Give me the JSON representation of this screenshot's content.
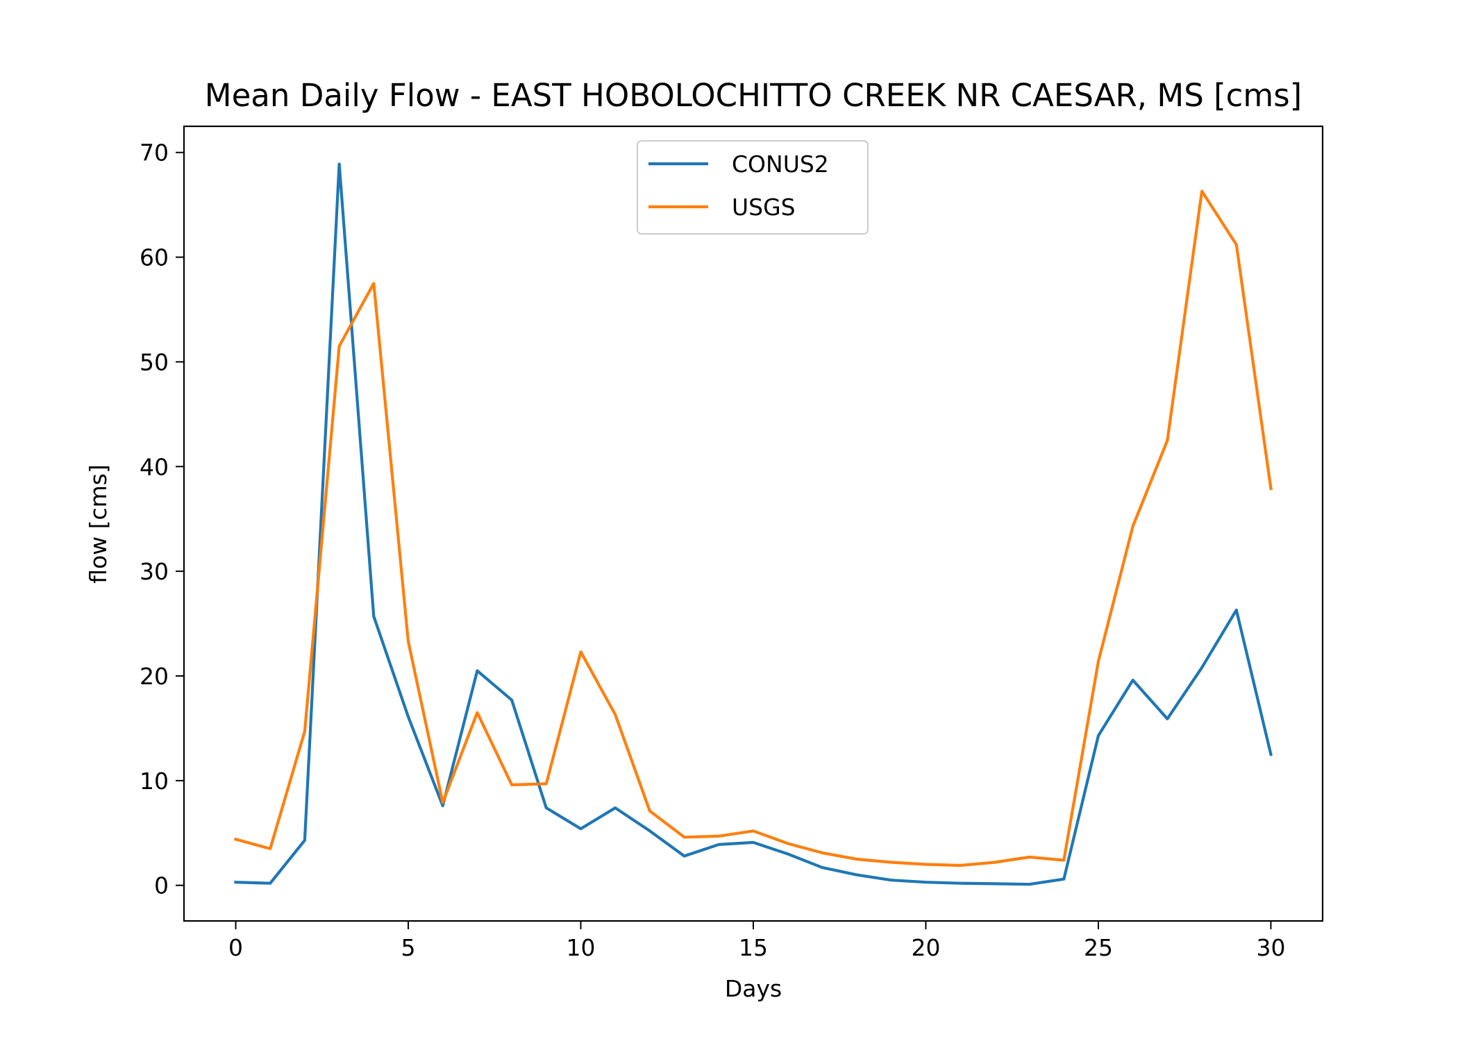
{
  "chart_data": {
    "type": "line",
    "title": "Mean Daily Flow - EAST HOBOLOCHITTO CREEK NR CAESAR, MS [cms]",
    "xlabel": "Days",
    "ylabel": "flow [cms]",
    "xlim": [
      -1.5,
      31.5
    ],
    "ylim": [
      -3.4,
      72.5
    ],
    "xticks": [
      0,
      5,
      10,
      15,
      20,
      25,
      30
    ],
    "yticks": [
      0,
      10,
      20,
      30,
      40,
      50,
      60,
      70
    ],
    "grid": false,
    "legend_position": "upper-center",
    "x": [
      0,
      1,
      2,
      3,
      4,
      5,
      6,
      7,
      8,
      9,
      10,
      11,
      12,
      13,
      14,
      15,
      16,
      17,
      18,
      19,
      20,
      21,
      22,
      23,
      24,
      25,
      26,
      27,
      28,
      29,
      30
    ],
    "series": [
      {
        "name": "CONUS2",
        "color": "#1f77b4",
        "values": [
          0.3,
          0.2,
          4.3,
          68.9,
          25.7,
          16.1,
          7.6,
          20.5,
          17.7,
          7.4,
          5.4,
          7.4,
          5.2,
          2.8,
          3.9,
          4.1,
          3.0,
          1.7,
          1.0,
          0.5,
          0.3,
          0.2,
          0.15,
          0.1,
          0.6,
          14.3,
          19.6,
          15.9,
          20.8,
          26.3,
          12.5
        ]
      },
      {
        "name": "USGS",
        "color": "#ff7f0e",
        "values": [
          4.4,
          3.5,
          14.7,
          51.5,
          57.5,
          23.3,
          7.9,
          16.5,
          9.6,
          9.7,
          22.3,
          16.3,
          7.1,
          4.6,
          4.7,
          5.2,
          4.0,
          3.1,
          2.5,
          2.2,
          2.0,
          1.9,
          2.2,
          2.7,
          2.4,
          21.4,
          34.3,
          42.5,
          66.3,
          61.2,
          37.9
        ]
      }
    ]
  }
}
